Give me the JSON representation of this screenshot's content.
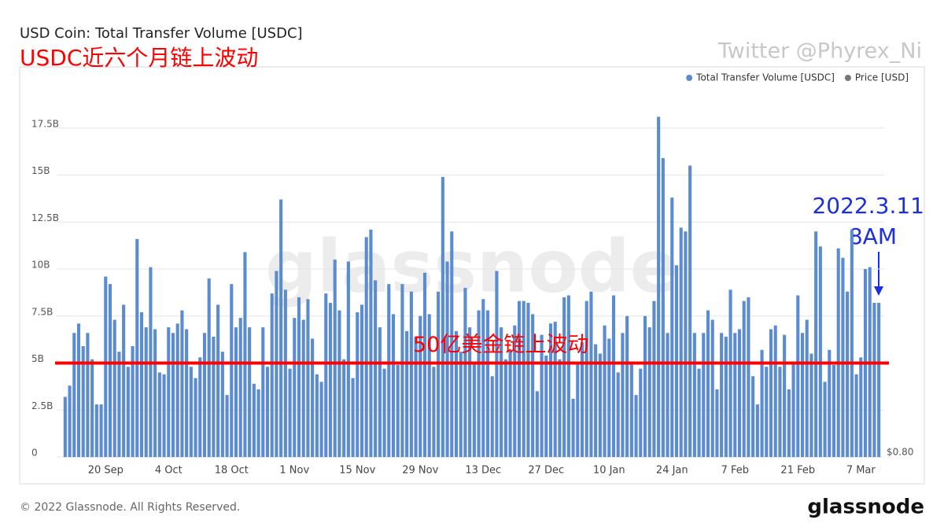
{
  "chart_data": {
    "type": "bar",
    "title": "USD Coin: Total Transfer Volume [USDC]",
    "subtitle": "USDC近六个月链上波动",
    "author": "Twitter @Phyrex_Ni",
    "watermark": "glassnode",
    "annotation_date": "2022.3.11",
    "annotation_time": "8AM",
    "reference_line": {
      "value": 5,
      "label": "50亿美金链上波动",
      "color": "#ff0000"
    },
    "legend_items": [
      {
        "name": "Total Transfer Volume [USDC]",
        "color": "#5b8bd0"
      },
      {
        "name": "Price [USD]",
        "color": "#777777"
      }
    ],
    "categories": [
      null,
      null,
      null,
      null,
      null,
      null,
      null,
      null,
      null,
      "20 Sep",
      null,
      null,
      null,
      null,
      null,
      null,
      null,
      null,
      null,
      null,
      null,
      null,
      null,
      "4 Oct",
      null,
      null,
      null,
      null,
      null,
      null,
      null,
      null,
      null,
      null,
      null,
      null,
      null,
      "18 Oct",
      null,
      null,
      null,
      null,
      null,
      null,
      null,
      null,
      null,
      null,
      null,
      null,
      null,
      "1 Nov",
      null,
      null,
      null,
      null,
      null,
      null,
      null,
      null,
      null,
      null,
      null,
      null,
      null,
      "15 Nov",
      null,
      null,
      null,
      null,
      null,
      null,
      null,
      null,
      null,
      null,
      null,
      null,
      null,
      "29 Nov",
      null,
      null,
      null,
      null,
      null,
      null,
      null,
      null,
      null,
      null,
      null,
      null,
      null,
      "13 Dec",
      null,
      null,
      null,
      null,
      null,
      null,
      null,
      null,
      null,
      null,
      null,
      null,
      null,
      "27 Dec",
      null,
      null,
      null,
      null,
      null,
      null,
      null,
      null,
      null,
      null,
      null,
      null,
      null,
      "10 Jan",
      null,
      null,
      null,
      null,
      null,
      null,
      null,
      null,
      null,
      null,
      null,
      null,
      null,
      "24 Jan",
      null,
      null,
      null,
      null,
      null,
      null,
      null,
      null,
      null,
      null,
      null,
      null,
      null,
      "7 Feb",
      null,
      null,
      null,
      null,
      null,
      null,
      null,
      null,
      null,
      null,
      null,
      null,
      null,
      "21 Feb",
      null,
      null,
      null,
      null,
      null,
      null,
      null,
      null,
      null,
      null,
      null,
      null,
      null,
      "7 Mar",
      null,
      null,
      null,
      null
    ],
    "series": [
      {
        "name": "Total Transfer Volume [USDC]",
        "color": "#5b8bd0",
        "values": [
          3.2,
          3.8,
          6.6,
          7.1,
          5.9,
          6.6,
          5.2,
          2.8,
          2.8,
          9.6,
          9.2,
          7.3,
          5.6,
          8.1,
          4.8,
          5.9,
          11.6,
          7.7,
          6.9,
          10.1,
          6.8,
          4.5,
          4.4,
          6.9,
          6.6,
          7.1,
          7.8,
          6.8,
          4.8,
          4.2,
          5.3,
          6.6,
          9.5,
          6.4,
          8.1,
          5.6,
          3.3,
          9.2,
          6.9,
          7.4,
          10.9,
          6.9,
          3.9,
          3.6,
          6.9,
          4.8,
          8.7,
          9.9,
          13.7,
          8.9,
          4.7,
          7.4,
          8.5,
          7.3,
          8.4,
          6.3,
          4.4,
          4.0,
          8.7,
          8.2,
          10.5,
          7.8,
          5.2,
          10.4,
          4.2,
          7.7,
          8.1,
          11.7,
          12.1,
          9.4,
          6.9,
          4.7,
          9.2,
          7.6,
          4.9,
          9.2,
          6.7,
          8.8,
          6.4,
          7.5,
          9.8,
          7.6,
          4.8,
          8.8,
          14.9,
          10.4,
          12.0,
          6.7,
          5.6,
          9.0,
          6.9,
          5.0,
          7.8,
          8.4,
          7.8,
          4.3,
          9.9,
          6.9,
          5.2,
          5.7,
          7.0,
          8.3,
          8.3,
          8.2,
          7.6,
          3.5,
          6.5,
          5.4,
          7.1,
          7.2,
          5.2,
          8.5,
          8.6,
          3.1,
          5.0,
          6.1,
          8.3,
          8.8,
          6.0,
          5.5,
          7.0,
          6.3,
          8.6,
          4.5,
          6.6,
          7.5,
          5.0,
          3.3,
          4.7,
          7.5,
          6.9,
          8.3,
          18.1,
          15.9,
          6.6,
          13.8,
          10.2,
          12.2,
          12.0,
          15.5,
          6.6,
          4.7,
          6.6,
          7.8,
          7.3,
          3.6,
          6.6,
          6.4,
          8.9,
          6.6,
          6.8,
          8.3,
          8.5,
          4.3,
          2.8,
          5.7,
          4.8,
          6.8,
          7.0,
          4.8,
          6.5,
          3.6,
          5.0,
          8.6,
          6.6,
          7.3,
          5.5,
          12.0,
          11.2,
          4.0,
          5.7,
          4.9,
          11.1,
          10.6,
          8.8,
          12.1,
          4.4,
          5.3,
          10.0,
          10.1,
          8.2,
          8.2
        ]
      }
    ],
    "ylim": [
      0,
      20
    ],
    "yticks": [
      0,
      {
        "value": 2.5,
        "label": "2.5B"
      },
      {
        "value": 5,
        "label": "5B"
      },
      {
        "value": 7.5,
        "label": "7.5B"
      },
      {
        "value": 10,
        "label": "10B"
      },
      {
        "value": 12.5,
        "label": "12.5B"
      },
      {
        "value": 15,
        "label": "15B"
      },
      {
        "value": 17.5,
        "label": "17.5B"
      }
    ],
    "y2ticks": [
      {
        "value": 0.8,
        "label": "$0.80"
      }
    ],
    "grid": true,
    "footer": "© 2022 Glassnode. All Rights Reserved.",
    "logo": "glassnode"
  }
}
